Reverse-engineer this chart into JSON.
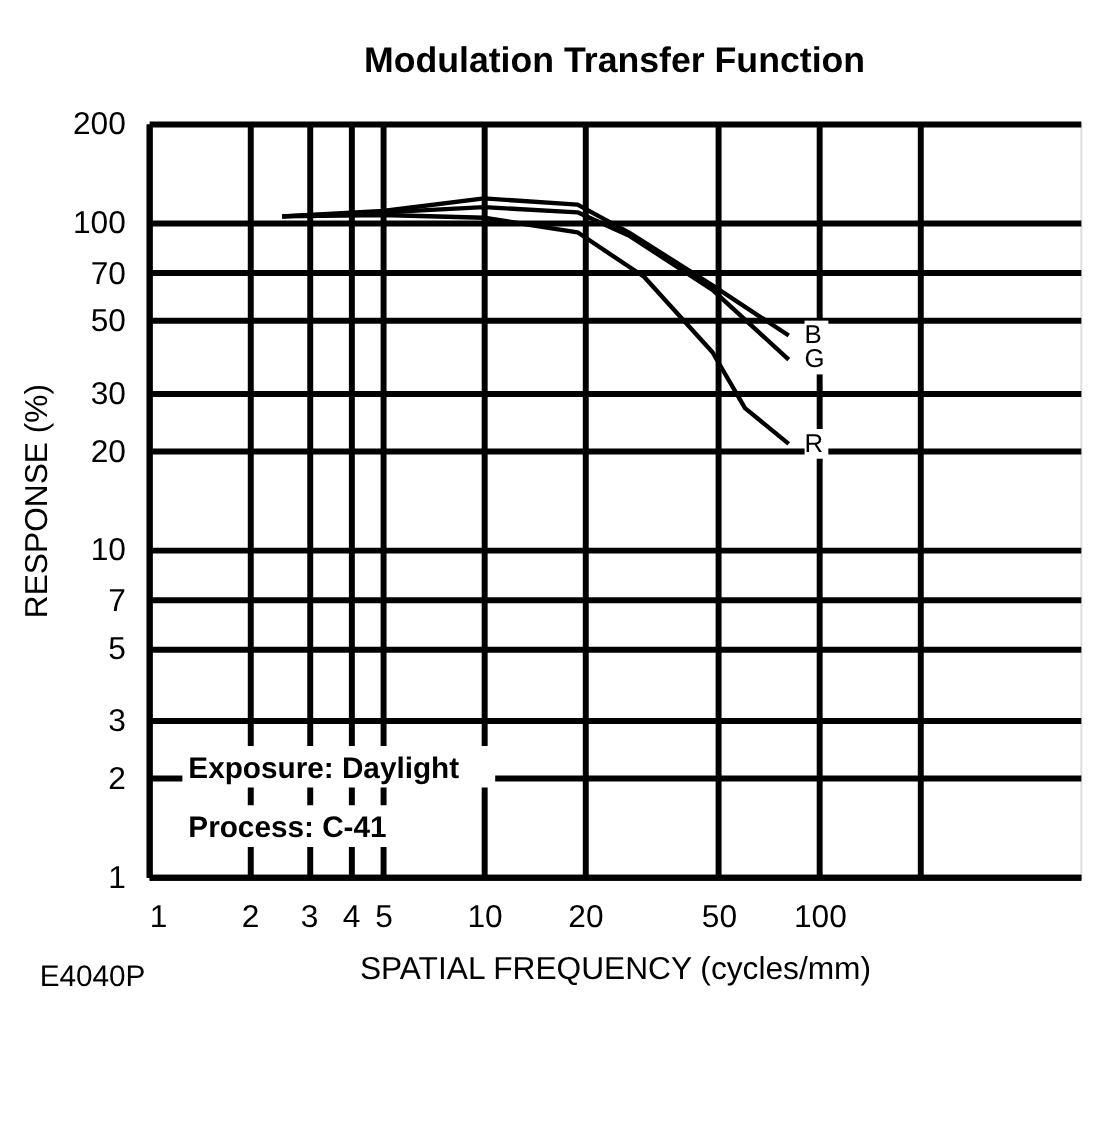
{
  "chart_data": {
    "type": "line",
    "title": "Modulation Transfer Function",
    "xlabel": "SPATIAL FREQUENCY (cycles/mm)",
    "ylabel": "RESPONSE (%)",
    "log": "xy",
    "xlim": [
      1,
      600
    ],
    "ylim": [
      1,
      200
    ],
    "xticks": [
      1,
      2,
      3,
      4,
      5,
      10,
      20,
      50,
      100,
      {
        "value": 200,
        "label": null
      }
    ],
    "yticks": [
      1,
      2,
      3,
      5,
      7,
      10,
      20,
      30,
      50,
      70,
      100,
      200
    ],
    "grid": true,
    "legend": false,
    "marker": "none",
    "line_style": "solid",
    "series": [
      {
        "name": "B",
        "color": "#000000",
        "x": [
          2.5,
          5,
          10,
          19,
          27,
          48,
          81
        ],
        "values": [
          104,
          108,
          118,
          113,
          93,
          64,
          45
        ]
      },
      {
        "name": "G",
        "color": "#000000",
        "x": [
          2.5,
          5,
          10,
          19,
          27,
          48,
          81
        ],
        "values": [
          104,
          107,
          111,
          107,
          91,
          62,
          38
        ]
      },
      {
        "name": "R",
        "color": "#000000",
        "x": [
          2.5,
          5,
          10,
          19,
          30,
          48,
          60,
          81
        ],
        "values": [
          104,
          105,
          103,
          93,
          68,
          40,
          27,
          21
        ]
      }
    ],
    "annotations": [
      "Exposure: Daylight",
      "Process: C-41",
      "E4040P"
    ]
  }
}
